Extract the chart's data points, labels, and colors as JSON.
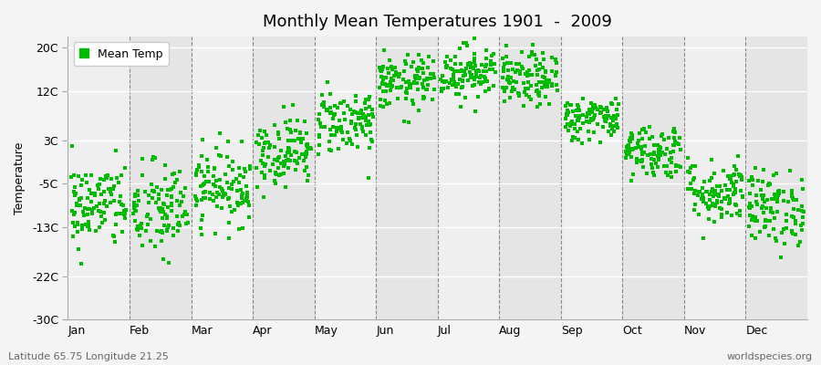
{
  "title": "Monthly Mean Temperatures 1901  -  2009",
  "ylabel": "Temperature",
  "xlabel_bottom_left": "Latitude 65.75 Longitude 21.25",
  "xlabel_bottom_right": "worldspecies.org",
  "ytick_labels": [
    "20C",
    "12C",
    "3C",
    "-5C",
    "-13C",
    "-22C",
    "-30C"
  ],
  "ytick_values": [
    20,
    12,
    3,
    -5,
    -13,
    -22,
    -30
  ],
  "ylim": [
    -30,
    22
  ],
  "month_names": [
    "Jan",
    "Feb",
    "Mar",
    "Apr",
    "May",
    "Jun",
    "Jul",
    "Aug",
    "Sep",
    "Oct",
    "Nov",
    "Dec"
  ],
  "dot_color": "#00BB00",
  "bg_color": "#F4F4F4",
  "plot_bg_color": "#EFEFEF",
  "alt_band_color": "#E5E5E5",
  "legend_label": "Mean Temp",
  "n_years": 109,
  "seed": 42,
  "month_means": [
    -9.0,
    -10.0,
    -5.5,
    1.0,
    6.5,
    13.5,
    15.5,
    14.0,
    7.0,
    1.0,
    -6.5,
    -9.5
  ],
  "month_stds": [
    4.0,
    4.5,
    3.5,
    3.2,
    3.0,
    2.5,
    2.5,
    2.5,
    2.0,
    2.5,
    3.0,
    3.5
  ]
}
